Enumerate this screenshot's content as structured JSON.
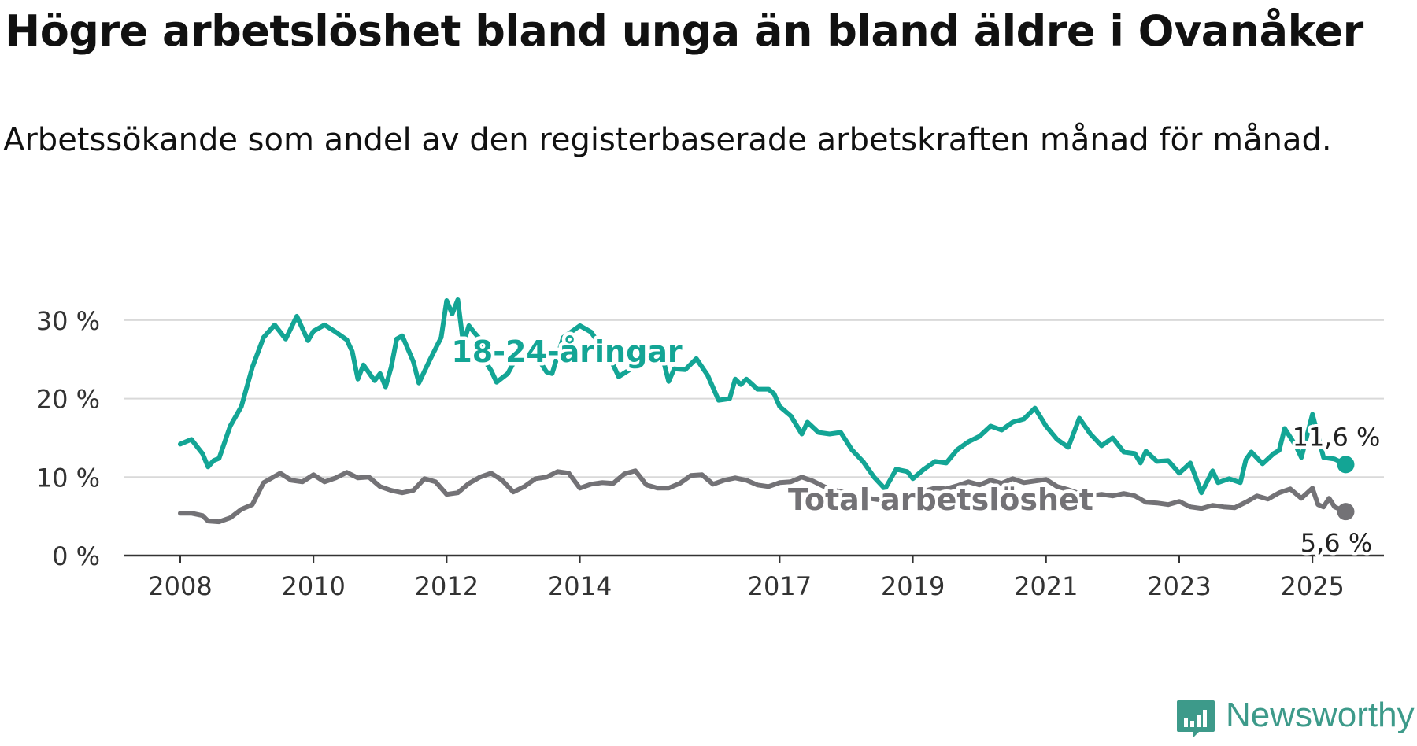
{
  "title": "Högre arbetslöshet bland unga än bland äldre i Ovanåker",
  "subtitle": "Arbetssökande som andel av den registerbaserade arbetskraften månad för månad.",
  "branding": {
    "name": "Newsworthy",
    "icon": "newsworthy-logo-icon",
    "color": "#3d9a8a"
  },
  "chart_data": {
    "type": "line",
    "title": "Högre arbetslöshet bland unga än bland äldre i Ovanåker",
    "subtitle": "Arbetssökande som andel av den registerbaserade arbetskraften månad för månad.",
    "xlabel": "",
    "ylabel": "",
    "xlim": [
      "2008-01",
      "2025-12"
    ],
    "ylim": [
      0,
      33
    ],
    "yticks": [
      0,
      10,
      20,
      30
    ],
    "ytick_labels": [
      "0 %",
      "10 %",
      "20 %",
      "30 %"
    ],
    "xticks": [
      "2008",
      "2010",
      "2012",
      "2014",
      "2017",
      "2019",
      "2021",
      "2023",
      "2025"
    ],
    "grid": true,
    "legend": "none (direct labels)",
    "series": [
      {
        "name": "18-24-åringar",
        "color": "#13a595",
        "end_label": "11,6 %",
        "points": [
          [
            "2008-01",
            14.2
          ],
          [
            "2008-03",
            14.8
          ],
          [
            "2008-05",
            13.0
          ],
          [
            "2008-06",
            11.3
          ],
          [
            "2008-07",
            12.1
          ],
          [
            "2008-08",
            12.4
          ],
          [
            "2008-10",
            16.5
          ],
          [
            "2008-12",
            19.0
          ],
          [
            "2009-02",
            24.0
          ],
          [
            "2009-04",
            27.8
          ],
          [
            "2009-06",
            29.4
          ],
          [
            "2009-08",
            27.6
          ],
          [
            "2009-10",
            30.5
          ],
          [
            "2009-12",
            27.4
          ],
          [
            "2010-01",
            28.6
          ],
          [
            "2010-03",
            29.4
          ],
          [
            "2010-05",
            28.5
          ],
          [
            "2010-07",
            27.5
          ],
          [
            "2010-08",
            26.0
          ],
          [
            "2010-09",
            22.5
          ],
          [
            "2010-10",
            24.3
          ],
          [
            "2010-12",
            22.3
          ],
          [
            "2011-01",
            23.2
          ],
          [
            "2011-02",
            21.5
          ],
          [
            "2011-03",
            24.0
          ],
          [
            "2011-04",
            27.6
          ],
          [
            "2011-05",
            28.0
          ],
          [
            "2011-07",
            24.7
          ],
          [
            "2011-08",
            22.0
          ],
          [
            "2011-10",
            25.0
          ],
          [
            "2011-12",
            27.8
          ],
          [
            "2012-01",
            32.5
          ],
          [
            "2012-02",
            30.8
          ],
          [
            "2012-03",
            32.6
          ],
          [
            "2012-04",
            27.0
          ],
          [
            "2012-05",
            29.3
          ],
          [
            "2012-06",
            28.4
          ],
          [
            "2012-07",
            27.6
          ],
          [
            "2012-08",
            24.7
          ],
          [
            "2012-09",
            23.6
          ],
          [
            "2012-10",
            22.1
          ],
          [
            "2012-12",
            23.2
          ],
          [
            "2013-02",
            25.8
          ],
          [
            "2013-04",
            26.2
          ],
          [
            "2013-06",
            24.5
          ],
          [
            "2013-07",
            23.4
          ],
          [
            "2013-08",
            23.2
          ],
          [
            "2013-10",
            27.8
          ],
          [
            "2013-12",
            28.8
          ],
          [
            "2014-01",
            29.3
          ],
          [
            "2014-03",
            28.5
          ],
          [
            "2014-05",
            26.5
          ],
          [
            "2014-07",
            24.3
          ],
          [
            "2014-08",
            22.8
          ],
          [
            "2014-10",
            23.7
          ],
          [
            "2014-12",
            25.5
          ],
          [
            "2015-02",
            26.2
          ],
          [
            "2015-04",
            25.0
          ],
          [
            "2015-05",
            22.2
          ],
          [
            "2015-06",
            23.8
          ],
          [
            "2015-08",
            23.7
          ],
          [
            "2015-10",
            25.1
          ],
          [
            "2015-12",
            23.0
          ],
          [
            "2016-02",
            19.8
          ],
          [
            "2016-04",
            20.0
          ],
          [
            "2016-05",
            22.5
          ],
          [
            "2016-06",
            21.8
          ],
          [
            "2016-07",
            22.5
          ],
          [
            "2016-09",
            21.2
          ],
          [
            "2016-11",
            21.2
          ],
          [
            "2016-12",
            20.6
          ],
          [
            "2017-01",
            19.0
          ],
          [
            "2017-03",
            17.8
          ],
          [
            "2017-05",
            15.5
          ],
          [
            "2017-06",
            17.0
          ],
          [
            "2017-08",
            15.7
          ],
          [
            "2017-10",
            15.5
          ],
          [
            "2017-12",
            15.7
          ],
          [
            "2018-02",
            13.5
          ],
          [
            "2018-04",
            12.0
          ],
          [
            "2018-06",
            10.0
          ],
          [
            "2018-08",
            8.5
          ],
          [
            "2018-10",
            11.0
          ],
          [
            "2018-12",
            10.7
          ],
          [
            "2019-01",
            9.8
          ],
          [
            "2019-03",
            11.0
          ],
          [
            "2019-05",
            12.0
          ],
          [
            "2019-07",
            11.8
          ],
          [
            "2019-09",
            13.5
          ],
          [
            "2019-11",
            14.5
          ],
          [
            "2020-01",
            15.2
          ],
          [
            "2020-03",
            16.5
          ],
          [
            "2020-05",
            16.0
          ],
          [
            "2020-07",
            17.0
          ],
          [
            "2020-09",
            17.4
          ],
          [
            "2020-11",
            18.8
          ],
          [
            "2021-01",
            16.5
          ],
          [
            "2021-03",
            14.8
          ],
          [
            "2021-05",
            13.8
          ],
          [
            "2021-07",
            17.5
          ],
          [
            "2021-09",
            15.5
          ],
          [
            "2021-11",
            14.0
          ],
          [
            "2022-01",
            15.0
          ],
          [
            "2022-03",
            13.2
          ],
          [
            "2022-05",
            13.0
          ],
          [
            "2022-06",
            11.8
          ],
          [
            "2022-07",
            13.3
          ],
          [
            "2022-09",
            12.0
          ],
          [
            "2022-11",
            12.1
          ],
          [
            "2023-01",
            10.5
          ],
          [
            "2023-03",
            11.8
          ],
          [
            "2023-05",
            8.0
          ],
          [
            "2023-07",
            10.8
          ],
          [
            "2023-08",
            9.3
          ],
          [
            "2023-10",
            9.8
          ],
          [
            "2023-12",
            9.3
          ],
          [
            "2024-01",
            12.2
          ],
          [
            "2024-02",
            13.2
          ],
          [
            "2024-04",
            11.7
          ],
          [
            "2024-06",
            13.0
          ],
          [
            "2024-07",
            13.4
          ],
          [
            "2024-08",
            16.2
          ],
          [
            "2024-10",
            14.0
          ],
          [
            "2024-11",
            12.5
          ],
          [
            "2025-01",
            18.0
          ],
          [
            "2025-03",
            12.5
          ],
          [
            "2025-05",
            12.3
          ],
          [
            "2025-07",
            11.6
          ]
        ]
      },
      {
        "name": "Total arbetslöshet",
        "color": "#737276",
        "end_label": "5,6 %",
        "points": [
          [
            "2008-01",
            5.4
          ],
          [
            "2008-03",
            5.4
          ],
          [
            "2008-05",
            5.1
          ],
          [
            "2008-06",
            4.4
          ],
          [
            "2008-08",
            4.3
          ],
          [
            "2008-10",
            4.8
          ],
          [
            "2008-12",
            5.9
          ],
          [
            "2009-02",
            6.5
          ],
          [
            "2009-04",
            9.3
          ],
          [
            "2009-07",
            10.5
          ],
          [
            "2009-09",
            9.6
          ],
          [
            "2009-11",
            9.4
          ],
          [
            "2010-01",
            10.3
          ],
          [
            "2010-03",
            9.4
          ],
          [
            "2010-05",
            9.9
          ],
          [
            "2010-07",
            10.6
          ],
          [
            "2010-09",
            9.9
          ],
          [
            "2010-11",
            10.0
          ],
          [
            "2011-01",
            8.8
          ],
          [
            "2011-03",
            8.3
          ],
          [
            "2011-05",
            8.0
          ],
          [
            "2011-07",
            8.3
          ],
          [
            "2011-09",
            9.8
          ],
          [
            "2011-11",
            9.4
          ],
          [
            "2012-01",
            7.8
          ],
          [
            "2012-03",
            8.0
          ],
          [
            "2012-05",
            9.2
          ],
          [
            "2012-07",
            10.0
          ],
          [
            "2012-09",
            10.5
          ],
          [
            "2012-11",
            9.6
          ],
          [
            "2013-01",
            8.1
          ],
          [
            "2013-03",
            8.8
          ],
          [
            "2013-05",
            9.8
          ],
          [
            "2013-07",
            10.0
          ],
          [
            "2013-09",
            10.7
          ],
          [
            "2013-11",
            10.5
          ],
          [
            "2014-01",
            8.6
          ],
          [
            "2014-03",
            9.1
          ],
          [
            "2014-05",
            9.3
          ],
          [
            "2014-07",
            9.2
          ],
          [
            "2014-09",
            10.4
          ],
          [
            "2014-11",
            10.8
          ],
          [
            "2015-01",
            9.0
          ],
          [
            "2015-03",
            8.6
          ],
          [
            "2015-05",
            8.6
          ],
          [
            "2015-07",
            9.2
          ],
          [
            "2015-09",
            10.2
          ],
          [
            "2015-11",
            10.3
          ],
          [
            "2016-01",
            9.1
          ],
          [
            "2016-03",
            9.6
          ],
          [
            "2016-05",
            9.9
          ],
          [
            "2016-07",
            9.6
          ],
          [
            "2016-09",
            9.0
          ],
          [
            "2016-11",
            8.8
          ],
          [
            "2017-01",
            9.3
          ],
          [
            "2017-03",
            9.4
          ],
          [
            "2017-05",
            10.0
          ],
          [
            "2017-07",
            9.5
          ],
          [
            "2017-09",
            8.8
          ],
          [
            "2017-11",
            8.3
          ],
          [
            "2018-01",
            8.0
          ],
          [
            "2018-03",
            7.6
          ],
          [
            "2018-05",
            7.3
          ],
          [
            "2018-07",
            7.1
          ],
          [
            "2018-09",
            7.4
          ],
          [
            "2018-11",
            7.6
          ],
          [
            "2019-01",
            7.8
          ],
          [
            "2019-03",
            8.2
          ],
          [
            "2019-05",
            8.6
          ],
          [
            "2019-07",
            8.5
          ],
          [
            "2019-09",
            8.9
          ],
          [
            "2019-11",
            9.4
          ],
          [
            "2020-01",
            9.0
          ],
          [
            "2020-03",
            9.6
          ],
          [
            "2020-05",
            9.2
          ],
          [
            "2020-07",
            9.8
          ],
          [
            "2020-09",
            9.3
          ],
          [
            "2020-11",
            9.5
          ],
          [
            "2021-01",
            9.7
          ],
          [
            "2021-03",
            8.8
          ],
          [
            "2021-05",
            8.4
          ],
          [
            "2021-07",
            7.9
          ],
          [
            "2021-09",
            7.6
          ],
          [
            "2021-11",
            7.8
          ],
          [
            "2022-01",
            7.6
          ],
          [
            "2022-03",
            7.9
          ],
          [
            "2022-05",
            7.6
          ],
          [
            "2022-07",
            6.8
          ],
          [
            "2022-09",
            6.7
          ],
          [
            "2022-11",
            6.5
          ],
          [
            "2023-01",
            6.9
          ],
          [
            "2023-03",
            6.2
          ],
          [
            "2023-05",
            6.0
          ],
          [
            "2023-07",
            6.4
          ],
          [
            "2023-09",
            6.2
          ],
          [
            "2023-11",
            6.1
          ],
          [
            "2024-01",
            6.8
          ],
          [
            "2024-03",
            7.6
          ],
          [
            "2024-05",
            7.2
          ],
          [
            "2024-07",
            8.0
          ],
          [
            "2024-09",
            8.5
          ],
          [
            "2024-11",
            7.3
          ],
          [
            "2025-01",
            8.6
          ],
          [
            "2025-02",
            6.5
          ],
          [
            "2025-03",
            6.2
          ],
          [
            "2025-04",
            7.3
          ],
          [
            "2025-05",
            6.2
          ],
          [
            "2025-07",
            5.6
          ]
        ]
      }
    ]
  }
}
